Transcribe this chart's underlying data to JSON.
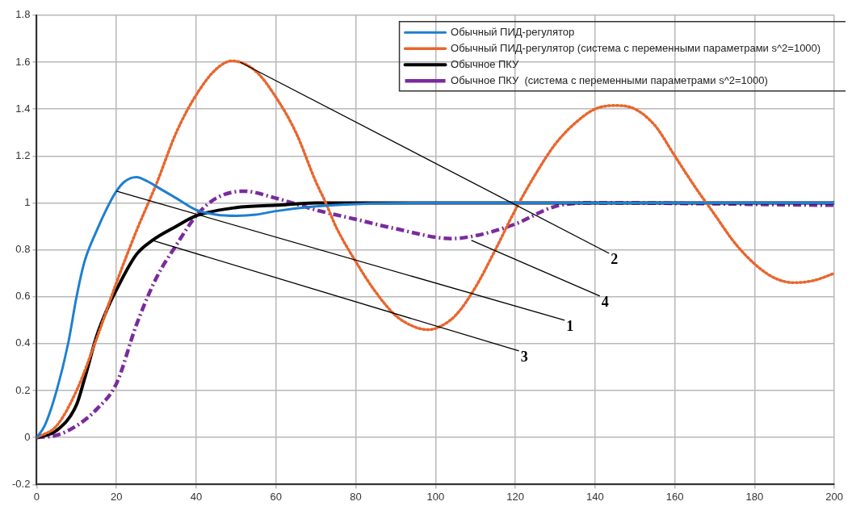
{
  "chart_data": {
    "type": "line",
    "xlim": [
      0,
      200
    ],
    "ylim": [
      -0.2,
      1.8
    ],
    "xticks": [
      0,
      20,
      40,
      60,
      80,
      100,
      120,
      140,
      160,
      180,
      200
    ],
    "yticks": [
      -0.2,
      0,
      0.2,
      0.4,
      0.6,
      0.8,
      1,
      1.2,
      1.4,
      1.6,
      1.8
    ],
    "grid": true,
    "legend": "top right",
    "marker": "none",
    "series": [
      {
        "name": "Обычный ПИД-регулятор",
        "color": "#1f7fd0",
        "line_style": "solid",
        "x": [
          0,
          2,
          5,
          8,
          10,
          12,
          15,
          18,
          20,
          22,
          25,
          28,
          30,
          35,
          40,
          45,
          50,
          55,
          60,
          70,
          80,
          100,
          140,
          200
        ],
        "values": [
          0,
          0.05,
          0.2,
          0.41,
          0.6,
          0.75,
          0.88,
          0.99,
          1.05,
          1.09,
          1.11,
          1.09,
          1.07,
          1.02,
          0.97,
          0.95,
          0.945,
          0.95,
          0.965,
          0.985,
          0.995,
          1,
          1,
          1
        ]
      },
      {
        "name": "Обычный ПИД-регулятор (система с переменными параметрами s^2=1000)",
        "color": "#e8662e",
        "line_style": "dotted",
        "x": [
          0,
          5,
          10,
          15,
          20,
          25,
          28,
          30,
          35,
          40,
          45,
          49,
          55,
          60,
          65,
          70,
          72.5,
          75,
          80,
          85,
          90,
          95,
          98,
          100,
          105,
          110,
          115,
          120,
          125,
          130,
          135,
          140,
          145,
          150,
          155,
          160,
          165,
          170,
          175,
          180,
          185,
          190,
          195,
          200
        ],
        "values": [
          0,
          0.05,
          0.2,
          0.42,
          0.66,
          0.88,
          1,
          1.08,
          1.3,
          1.46,
          1.57,
          1.605,
          1.56,
          1.45,
          1.3,
          1.09,
          1,
          0.9,
          0.75,
          0.62,
          0.52,
          0.47,
          0.46,
          0.465,
          0.52,
          0.64,
          0.8,
          0.97,
          1.12,
          1.25,
          1.34,
          1.4,
          1.415,
          1.4,
          1.33,
          1.2,
          1.07,
          0.95,
          0.83,
          0.74,
          0.68,
          0.66,
          0.67,
          0.7
        ]
      },
      {
        "name": "Обычное ПКУ",
        "color": "#000000",
        "line_style": "solid",
        "x": [
          0,
          5,
          10,
          12,
          15,
          18,
          20,
          25,
          29,
          35,
          40,
          50,
          60,
          70,
          200
        ],
        "values": [
          0,
          0.03,
          0.14,
          0.25,
          0.43,
          0.56,
          0.63,
          0.78,
          0.84,
          0.9,
          0.945,
          0.98,
          0.99,
          1,
          1
        ]
      },
      {
        "name": "Обычное ПКУ  (система с переменными параметрами s^2=1000)",
        "color": "#7b2a9e",
        "line_style": "dashed",
        "x": [
          0,
          5,
          10,
          15,
          20,
          25,
          30,
          35,
          40,
          45,
          52,
          60,
          70,
          80,
          90,
          104,
          110,
          120,
          130,
          140,
          200
        ],
        "values": [
          0,
          0.01,
          0.05,
          0.12,
          0.23,
          0.48,
          0.68,
          0.82,
          0.945,
          1.02,
          1.05,
          1.02,
          0.97,
          0.93,
          0.89,
          0.848,
          0.86,
          0.91,
          0.985,
          1,
          0.99
        ]
      }
    ],
    "annotations": [
      {
        "text": "1",
        "x": 20,
        "y": 1.05
      },
      {
        "text": "2",
        "x": 51,
        "y": 1.6
      },
      {
        "text": "3",
        "x": 29,
        "y": 0.84
      },
      {
        "text": "4",
        "x": 109,
        "y": 0.84
      }
    ]
  }
}
